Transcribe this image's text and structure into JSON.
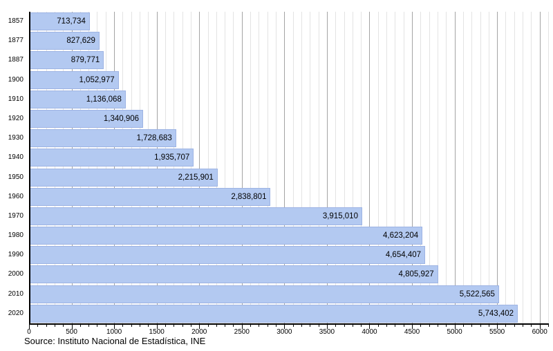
{
  "chart_data": {
    "type": "bar",
    "orientation": "horizontal",
    "title": "",
    "xlabel": "",
    "ylabel": "",
    "categories": [
      "1857",
      "1877",
      "1887",
      "1900",
      "1910",
      "1920",
      "1930",
      "1940",
      "1950",
      "1960",
      "1970",
      "1980",
      "1990",
      "2000",
      "2010",
      "2020"
    ],
    "values": [
      713734,
      827629,
      879771,
      1052977,
      1136068,
      1340906,
      1728683,
      1935707,
      2215901,
      2838801,
      3915010,
      4623204,
      4654407,
      4805927,
      5522565,
      5743402
    ],
    "value_labels": [
      "713,734",
      "827,629",
      "879,771",
      "1,052,977",
      "1,136,068",
      "1,340,906",
      "1,728,683",
      "1,935,707",
      "2,215,901",
      "2,838,801",
      "3,915,010",
      "4,623,204",
      "4,654,407",
      "4,805,927",
      "5,522,565",
      "5,743,402"
    ],
    "xlim": [
      0,
      6100
    ],
    "x_value_divisor": 1000,
    "x_major_ticks": [
      0,
      500,
      1000,
      1500,
      2000,
      2500,
      3000,
      3500,
      4000,
      4500,
      5000,
      5500,
      6000
    ],
    "x_tick_labels": [
      "0",
      "500",
      "1000",
      "1500",
      "2000",
      "2500",
      "3000",
      "3500",
      "4000",
      "4500",
      "5000",
      "5500",
      "6000"
    ],
    "x_minor_step": 100,
    "grid": true,
    "legend": false
  },
  "source": "Source: Instituto Nacional de Estadística, INE",
  "colors": {
    "background": "#ffffff",
    "bar_fill": "#b3c9f1",
    "bar_border": "#9db3e3",
    "grid_minor": "#e3e3e3",
    "grid_major": "#a3a3a3",
    "axis": "#000000",
    "tick": "#000000",
    "text": "#000000"
  }
}
